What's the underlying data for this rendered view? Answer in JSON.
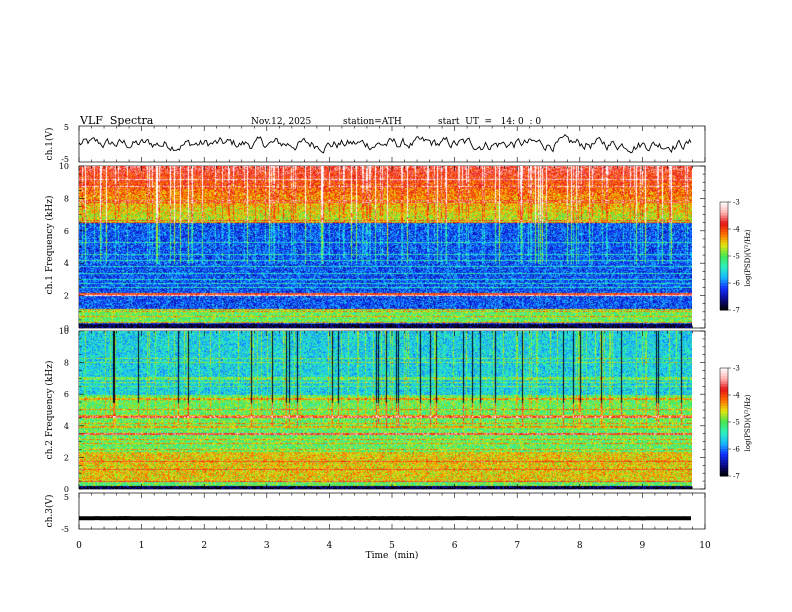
{
  "chart_data": {
    "type": "heatmap",
    "title": "VLF  Spectra",
    "date": "Nov.12, 2025",
    "station": "station=ATH",
    "start_time": "start  UT  =   14: 0  : 0",
    "xlabel": "Time  (min)",
    "xlim": [
      0,
      10
    ],
    "x_ticks": [
      "0",
      "1",
      "2",
      "3",
      "4",
      "5",
      "6",
      "7",
      "8",
      "9",
      "10"
    ],
    "panels": [
      {
        "id": "ch1-waveform",
        "type": "line",
        "ylabel": "ch.1(V)",
        "ylim": [
          -5,
          5
        ],
        "y_ticks": [
          "5",
          "-5"
        ],
        "data_end_min": 9.8,
        "approx_level": 0,
        "approx_amplitude": 1
      },
      {
        "id": "ch1-spectrogram",
        "type": "heatmap",
        "ylabel": "ch.1\nFrequency  (kHz)",
        "ylim": [
          0,
          10
        ],
        "y_ticks": [
          "0",
          "2",
          "4",
          "6",
          "8",
          "10"
        ],
        "data_end_min": 9.8,
        "colorbar": {
          "label": "log(PSD)(V²/Hz)",
          "range": [
            -7,
            -3
          ],
          "ticks": [
            "-3",
            "-4",
            "-5",
            "-6",
            "-7"
          ]
        }
      },
      {
        "id": "ch2-spectrogram",
        "type": "heatmap",
        "ylabel": "ch.2\nFrequency  (kHz)",
        "ylim": [
          0,
          10
        ],
        "y_ticks": [
          "0",
          "2",
          "4",
          "6",
          "8",
          "10"
        ],
        "data_end_min": 9.8,
        "colorbar": {
          "label": "log(PSD)(V²/Hz)",
          "range": [
            -7,
            -3
          ],
          "ticks": [
            "-3",
            "-4",
            "-5",
            "-6",
            "-7"
          ]
        }
      },
      {
        "id": "ch3-waveform",
        "type": "line",
        "ylabel": "ch.3(V)",
        "ylim": [
          -5,
          5
        ],
        "y_ticks": [
          "5",
          "-5"
        ],
        "data_end_min": 9.8,
        "approx_level": -2,
        "approx_amplitude": 0.3
      }
    ],
    "colorbar": {
      "label": "log(PSD)(V²/Hz)",
      "range": [
        -7,
        -3
      ],
      "ticks": [
        "-3",
        "-4",
        "-5",
        "-6",
        "-7"
      ],
      "colormap": [
        "#000000",
        "#0a0a8a",
        "#1030ff",
        "#18b8ff",
        "#2df0c0",
        "#46e650",
        "#e6e60f",
        "#ff6e00",
        "#e61414",
        "#ffb4b4",
        "#ffffff"
      ]
    }
  }
}
